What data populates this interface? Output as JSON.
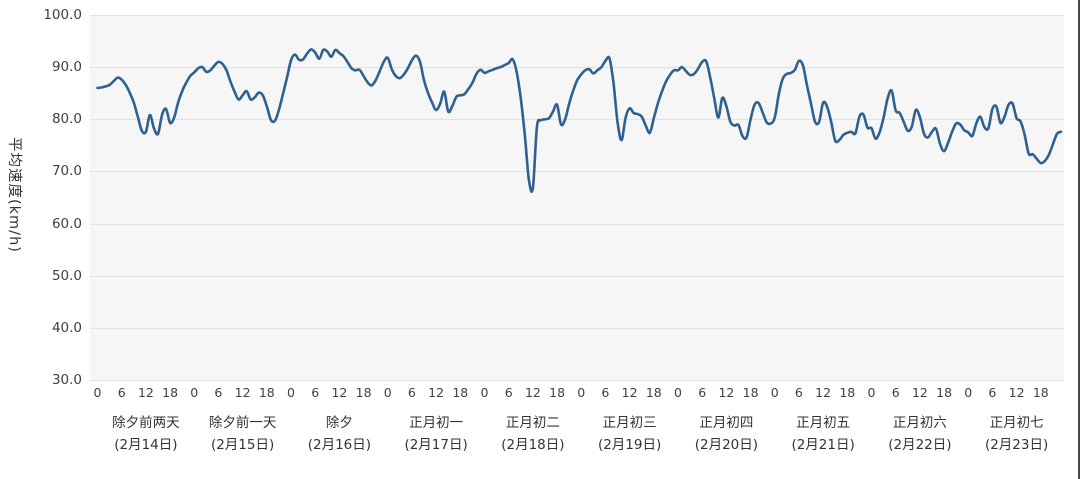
{
  "chart_data": {
    "type": "line",
    "title": "",
    "ylabel": "平均速度(km/h)",
    "xlabel": "",
    "ylim": [
      30,
      100
    ],
    "grid": true,
    "legend": "none",
    "line_color": "#2E618F",
    "plot_bg": "#f6f6f6",
    "gridline_color": "#e2e2e2",
    "yticks": [
      100,
      90,
      80,
      70,
      60,
      50,
      40,
      30
    ],
    "ytick_labels": [
      "100.0",
      "90.0",
      "80.0",
      "70.0",
      "60.0",
      "50.0",
      "40.0",
      "30.0"
    ],
    "hour_ticks": [
      0,
      6,
      12,
      18
    ],
    "hour_tick_labels": [
      "0",
      "6",
      "12",
      "18"
    ],
    "x_unit": "hour",
    "days": [
      {
        "name": "除夕前两天",
        "date": "(2月14日)",
        "values": [
          86.0,
          86.1,
          86.3,
          86.6,
          87.3,
          88.0,
          87.6,
          86.6,
          85.1,
          83.2,
          80.5,
          77.8,
          77.6,
          80.8,
          78.3,
          77.2,
          80.8,
          82.0,
          79.3,
          80.3,
          83.2,
          85.4,
          87.0,
          88.3
        ]
      },
      {
        "name": "除夕前一天",
        "date": "(2月15日)",
        "values": [
          89.0,
          89.8,
          90.0,
          89.1,
          89.4,
          90.3,
          91.0,
          90.6,
          89.4,
          87.2,
          85.3,
          83.8,
          84.6,
          85.4,
          83.8,
          84.2,
          85.1,
          84.6,
          82.5,
          79.9,
          79.7,
          81.8,
          84.8,
          88.0
        ]
      },
      {
        "name": "除夕",
        "date": "(2月16日)",
        "values": [
          91.3,
          92.4,
          91.4,
          91.5,
          92.6,
          93.4,
          92.8,
          91.6,
          93.3,
          93.0,
          92.0,
          93.3,
          92.7,
          92.1,
          91.0,
          89.8,
          89.4,
          89.5,
          88.3,
          87.1,
          86.5,
          87.5,
          89.2,
          91.0
        ]
      },
      {
        "name": "正月初一",
        "date": "(2月17日)",
        "values": [
          91.8,
          89.6,
          88.3,
          87.9,
          88.6,
          89.8,
          91.3,
          92.2,
          91.0,
          87.5,
          85.0,
          83.2,
          81.8,
          83.0,
          85.3,
          81.5,
          82.5,
          84.3,
          84.6,
          84.8,
          85.8,
          87.0,
          88.7,
          89.5
        ]
      },
      {
        "name": "正月初二",
        "date": "(2月18日)",
        "values": [
          88.9,
          89.2,
          89.5,
          89.8,
          90.0,
          90.4,
          90.8,
          91.5,
          89.0,
          84.0,
          77.0,
          68.5,
          66.8,
          78.5,
          79.8,
          80.0,
          80.2,
          81.5,
          82.8,
          79.0,
          80.0,
          83.0,
          85.5,
          87.5
        ]
      },
      {
        "name": "正月初三",
        "date": "(2月19日)",
        "values": [
          88.6,
          89.4,
          89.6,
          88.8,
          89.4,
          90.0,
          91.2,
          91.7,
          87.0,
          79.5,
          76.0,
          80.3,
          82.1,
          81.2,
          81.0,
          80.5,
          78.8,
          77.4,
          80.2,
          83.0,
          85.3,
          87.2,
          88.5,
          89.4
        ]
      },
      {
        "name": "正月初四",
        "date": "(2月20日)",
        "values": [
          89.4,
          90.0,
          89.2,
          88.5,
          88.7,
          89.7,
          91.0,
          91.1,
          88.0,
          84.0,
          80.3,
          84.1,
          82.5,
          79.5,
          78.8,
          78.9,
          76.8,
          76.5,
          80.0,
          82.8,
          83.1,
          81.3,
          79.4,
          79.2
        ]
      },
      {
        "name": "正月初五",
        "date": "(2月21日)",
        "values": [
          80.3,
          84.8,
          87.8,
          88.7,
          88.9,
          89.5,
          91.2,
          90.3,
          86.5,
          83.0,
          79.5,
          79.5,
          83.2,
          82.4,
          79.5,
          75.9,
          76.0,
          77.0,
          77.4,
          77.6,
          77.3,
          80.5,
          80.9,
          78.4
        ]
      },
      {
        "name": "正月初六",
        "date": "(2月22日)",
        "values": [
          78.3,
          76.3,
          77.5,
          80.3,
          84.0,
          85.5,
          81.7,
          81.2,
          79.5,
          77.8,
          78.6,
          81.8,
          80.4,
          77.3,
          76.5,
          77.6,
          78.2,
          75.3,
          73.9,
          75.5,
          77.6,
          79.2,
          79.0,
          77.9
        ]
      },
      {
        "name": "正月初七",
        "date": "(2月23日)",
        "values": [
          77.5,
          76.8,
          79.2,
          80.5,
          78.5,
          78.3,
          82.0,
          82.4,
          79.3,
          80.5,
          82.8,
          83.0,
          80.2,
          79.6,
          77.0,
          73.4,
          73.3,
          72.4,
          71.6,
          72.0,
          73.2,
          75.2,
          77.2,
          77.6
        ]
      }
    ]
  }
}
